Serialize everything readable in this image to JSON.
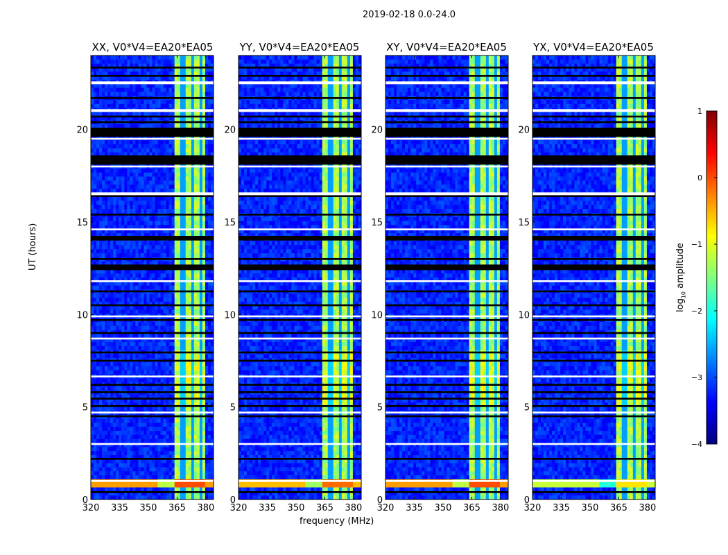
{
  "chart_data": {
    "type": "heatmap",
    "title": "2019-02-18 0.0-24.0",
    "xlabel": "frequency (MHz)",
    "ylabel": "UT (hours)",
    "xlim": [
      320,
      384
    ],
    "ylim": [
      0,
      24
    ],
    "xticks": [
      "320",
      "335",
      "350",
      "365",
      "380"
    ],
    "xtick_values": [
      320,
      335,
      350,
      365,
      380
    ],
    "yticks": [
      "0",
      "5",
      "10",
      "15",
      "20"
    ],
    "ytick_values": [
      0,
      5,
      10,
      15,
      20
    ],
    "panels": [
      {
        "title": "XX, V0*V4=EA20*EA05",
        "hot_band_strength": 1.0
      },
      {
        "title": "YY, V0*V4=EA20*EA05",
        "hot_band_strength": 0.9
      },
      {
        "title": "XY, V0*V4=EA20*EA05",
        "hot_band_strength": 1.0
      },
      {
        "title": "YX, V0*V4=EA20*EA05",
        "hot_band_strength": 0.5
      }
    ],
    "colorbar": {
      "label": "log10 amplitude",
      "label_main": "log",
      "label_sub": "10",
      "label_rest": " amplitude",
      "range": [
        -4,
        1
      ],
      "ticks": [
        "1",
        "0",
        "−1",
        "−2",
        "−3",
        "−4"
      ],
      "tick_values": [
        1,
        0,
        -1,
        -2,
        -3,
        -4
      ],
      "colormap": "jet"
    },
    "background_log_amplitude": -3.2,
    "rfi_band_mhz": [
      363,
      380
    ],
    "rfi_column_centers_mhz": [
      365.5,
      370.5,
      375.5
    ],
    "rfi_log_amplitude": -1.3,
    "hot_band_ut": [
      0.6,
      1.0
    ],
    "hot_band_log_amplitude": -0.4,
    "flagged_black_ut": [
      [
        23.3,
        23.4
      ],
      [
        22.85,
        22.95
      ],
      [
        21.65,
        21.75
      ],
      [
        20.65,
        20.75
      ],
      [
        20.35,
        20.45
      ],
      [
        19.6,
        20.1
      ],
      [
        18.1,
        18.6
      ],
      [
        16.35,
        16.45
      ],
      [
        15.35,
        15.45
      ],
      [
        14.0,
        14.25
      ],
      [
        12.95,
        13.05
      ],
      [
        12.4,
        12.7
      ],
      [
        11.2,
        11.3
      ],
      [
        10.45,
        10.55
      ],
      [
        9.65,
        9.75
      ],
      [
        8.95,
        9.05
      ],
      [
        7.9,
        8.0
      ],
      [
        7.45,
        7.55
      ],
      [
        6.15,
        6.25
      ],
      [
        5.75,
        5.85
      ],
      [
        5.4,
        5.5
      ],
      [
        5.0,
        5.1
      ],
      [
        4.45,
        4.55
      ],
      [
        2.15,
        2.25
      ],
      [
        0.35,
        0.45
      ]
    ],
    "flagged_white_ut": [
      [
        22.45,
        22.6
      ],
      [
        20.95,
        21.1
      ],
      [
        19.45,
        19.55
      ],
      [
        17.95,
        18.05
      ],
      [
        16.45,
        16.6
      ],
      [
        14.55,
        14.65
      ],
      [
        11.75,
        11.85
      ],
      [
        9.85,
        9.95
      ],
      [
        8.65,
        8.75
      ],
      [
        6.6,
        6.7
      ],
      [
        4.65,
        4.75
      ],
      [
        2.95,
        3.05
      ],
      [
        0.95,
        1.05
      ]
    ]
  }
}
